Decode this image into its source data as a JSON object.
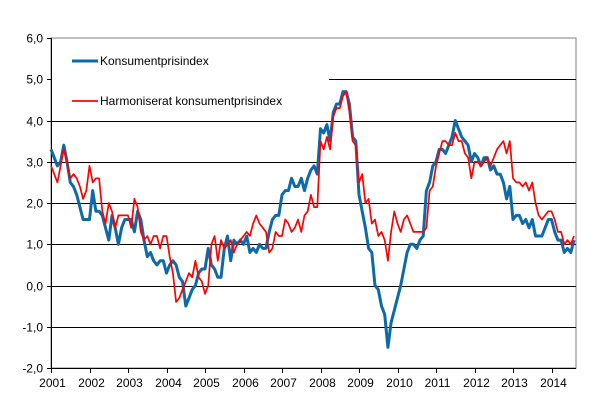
{
  "chart_data": {
    "type": "line",
    "title": "",
    "xlabel": "",
    "ylabel": "",
    "ylim": [
      -2.0,
      6.0
    ],
    "yticks": [
      "-2,0",
      "-1,0",
      "0,0",
      "1,0",
      "2,0",
      "3,0",
      "4,0",
      "5,0",
      "6,0"
    ],
    "xticks": [
      "2001",
      "2002",
      "2003",
      "2004",
      "2005",
      "2006",
      "2007",
      "2008",
      "2009",
      "2010",
      "2011",
      "2012",
      "2013",
      "2014"
    ],
    "x_start": "2001-01",
    "x_frequency": "monthly",
    "grid": "horizontal",
    "legend_position": "top-left",
    "series": [
      {
        "name": "Konsumentprisindex",
        "color": "#0d6aa8",
        "values": [
          3.3,
          3.1,
          2.9,
          3.0,
          3.4,
          3.0,
          2.5,
          2.4,
          2.2,
          1.9,
          1.6,
          1.6,
          1.6,
          2.3,
          1.8,
          1.8,
          1.7,
          1.4,
          1.1,
          1.7,
          1.4,
          1.0,
          1.4,
          1.6,
          1.6,
          1.6,
          1.3,
          1.8,
          1.6,
          1.1,
          0.7,
          0.8,
          0.6,
          0.5,
          0.6,
          0.6,
          0.3,
          0.5,
          0.6,
          0.5,
          0.2,
          0.1,
          -0.5,
          -0.3,
          -0.1,
          0.0,
          0.3,
          0.4,
          0.4,
          0.9,
          0.5,
          0.4,
          0.2,
          0.2,
          0.9,
          1.2,
          0.6,
          1.1,
          1.0,
          1.1,
          1.0,
          1.2,
          0.8,
          0.9,
          0.8,
          1.0,
          0.9,
          0.9,
          1.3,
          1.6,
          1.7,
          1.7,
          2.2,
          2.3,
          2.3,
          2.6,
          2.4,
          2.4,
          2.6,
          2.3,
          2.6,
          2.8,
          2.9,
          2.7,
          3.8,
          3.7,
          3.9,
          3.5,
          4.2,
          4.4,
          4.4,
          4.7,
          4.7,
          4.4,
          3.6,
          3.5,
          2.2,
          1.8,
          1.4,
          0.9,
          0.8,
          0.0,
          -0.1,
          -0.5,
          -0.7,
          -1.5,
          -0.9,
          -0.6,
          -0.3,
          0.0,
          0.4,
          0.8,
          1.0,
          1.0,
          0.9,
          1.1,
          1.2,
          2.3,
          2.5,
          2.9,
          3.0,
          3.3,
          3.3,
          3.2,
          3.4,
          3.6,
          4.0,
          3.8,
          3.6,
          3.5,
          3.4,
          3.0,
          3.2,
          3.1,
          2.9,
          3.1,
          3.1,
          2.8,
          2.9,
          2.7,
          2.7,
          2.5,
          2.1,
          2.4,
          1.6,
          1.7,
          1.7,
          1.5,
          1.6,
          1.4,
          1.6,
          1.2,
          1.2,
          1.2,
          1.4,
          1.6,
          1.6,
          1.3,
          1.1,
          1.1,
          0.8,
          0.9,
          0.8,
          1.1
        ]
      },
      {
        "name": "Harmoniserat konsumentprisindex",
        "color": "#ff0000",
        "values": [
          2.9,
          2.7,
          2.5,
          2.9,
          3.3,
          3.0,
          2.6,
          2.7,
          2.6,
          2.4,
          2.1,
          2.3,
          2.9,
          2.5,
          2.6,
          2.6,
          1.8,
          1.5,
          2.0,
          1.8,
          1.4,
          1.7,
          1.7,
          1.7,
          1.7,
          1.4,
          2.1,
          1.9,
          1.3,
          1.1,
          1.2,
          1.0,
          1.2,
          1.2,
          0.9,
          1.2,
          1.2,
          0.7,
          0.3,
          -0.4,
          -0.3,
          -0.1,
          0.1,
          0.3,
          0.2,
          0.6,
          0.2,
          0.1,
          -0.2,
          0.0,
          1.0,
          1.2,
          0.6,
          1.1,
          0.9,
          1.0,
          1.1,
          0.8,
          1.0,
          1.1,
          1.2,
          1.3,
          1.2,
          1.5,
          1.7,
          1.5,
          1.4,
          1.3,
          0.8,
          0.9,
          1.3,
          1.2,
          1.2,
          1.6,
          1.5,
          1.3,
          1.4,
          1.6,
          1.3,
          1.7,
          1.8,
          2.2,
          1.9,
          1.9,
          3.5,
          3.3,
          3.6,
          3.3,
          4.1,
          4.3,
          4.3,
          4.6,
          4.7,
          4.2,
          3.5,
          3.4,
          2.5,
          2.7,
          2.0,
          2.1,
          1.5,
          1.6,
          1.2,
          1.3,
          1.1,
          0.6,
          1.3,
          1.8,
          1.5,
          1.3,
          1.6,
          1.7,
          1.5,
          1.3,
          1.3,
          1.3,
          1.3,
          1.4,
          2.3,
          2.4,
          2.9,
          3.2,
          3.5,
          3.5,
          3.4,
          3.4,
          3.7,
          3.5,
          3.5,
          3.2,
          3.1,
          2.6,
          3.0,
          3.0,
          2.9,
          3.0,
          3.1,
          2.9,
          3.1,
          3.3,
          3.4,
          3.5,
          3.2,
          3.5,
          2.6,
          2.5,
          2.5,
          2.4,
          2.5,
          2.3,
          2.5,
          2.0,
          1.7,
          1.6,
          1.7,
          1.8,
          1.8,
          1.6,
          1.3,
          1.3,
          1.0,
          1.1,
          1.0,
          1.2
        ]
      }
    ]
  }
}
